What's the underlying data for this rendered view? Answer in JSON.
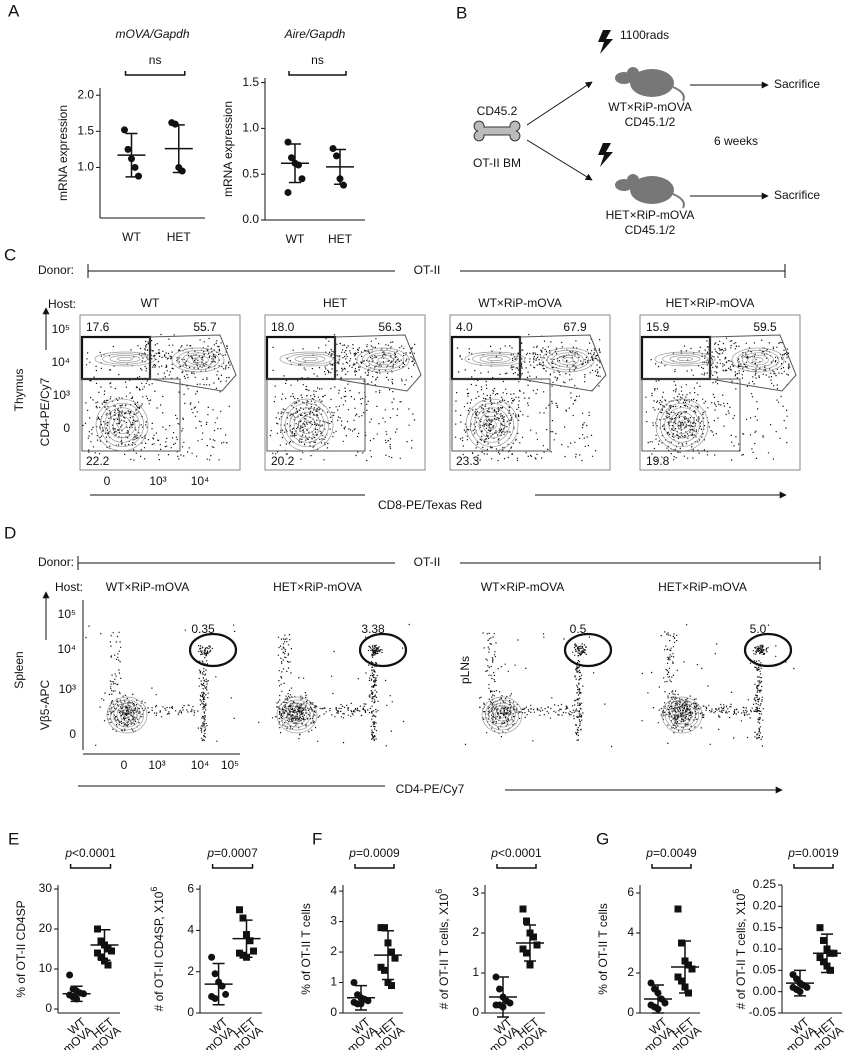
{
  "panel_labels": [
    "A",
    "B",
    "C",
    "D",
    "E",
    "F",
    "G"
  ],
  "chart_data": [
    {
      "type": "dotplot",
      "title": "mOVA/Gapdh",
      "ylabel": "mRNA expression",
      "annotation": "ns",
      "categories": [
        "WT",
        "HET"
      ],
      "ylim": [
        0.3,
        2.1
      ],
      "yticks": [
        {
          "value": 1,
          "label": "1.0"
        },
        {
          "value": 1.5,
          "label": "1.5"
        },
        {
          "value": 2,
          "label": "2.0"
        }
      ],
      "color": "#111111",
      "groups": [
        {
          "marker": "circle",
          "values": [
            1.52,
            1.25,
            1.12,
            1.0,
            0.88
          ],
          "mean": 1.17,
          "sd": 0.3
        },
        {
          "marker": "circle",
          "values": [
            1.62,
            1.6,
            1.0,
            0.95
          ],
          "mean": 1.26,
          "sd": 0.33
        }
      ]
    },
    {
      "type": "dotplot",
      "title": "Aire/Gapdh",
      "ylabel": "mRNA expression",
      "annotation": "ns",
      "categories": [
        "WT",
        "HET"
      ],
      "ylim": [
        0,
        1.55
      ],
      "yticks": [
        {
          "value": 0,
          "label": "0.0"
        },
        {
          "value": 0.5,
          "label": "0.5"
        },
        {
          "value": 1,
          "label": "1.0"
        },
        {
          "value": 1.5,
          "label": "1.5"
        }
      ],
      "color": "#111111",
      "groups": [
        {
          "marker": "circle",
          "values": [
            0.85,
            0.68,
            0.62,
            0.6,
            0.45,
            0.3
          ],
          "mean": 0.62,
          "sd": 0.21
        },
        {
          "marker": "circle",
          "values": [
            0.78,
            0.7,
            0.45,
            0.38
          ],
          "mean": 0.58,
          "sd": 0.19
        }
      ]
    },
    {
      "type": "dotplot",
      "ylabel": "% of OT-II CD4SP",
      "annotation_var": "p",
      "annotation": "<0.0001",
      "categories": [
        "WT",
        "HET"
      ],
      "category_sublabel": "RiP-mOVA",
      "ylim": [
        -1,
        31
      ],
      "yticks": [
        0,
        10,
        20,
        30
      ],
      "color": "#111111",
      "groups": [
        {
          "marker": "circle",
          "values": [
            8.5,
            5,
            4.5,
            4,
            3.8,
            3.5,
            3,
            2.5
          ],
          "mean": 3.8,
          "sd": 1.9
        },
        {
          "marker": "square",
          "values": [
            20,
            17,
            16,
            15,
            14.5,
            14,
            13,
            12,
            11
          ],
          "mean": 16,
          "sd": 3.8
        }
      ]
    },
    {
      "type": "dotplot",
      "ylabel": "# of OT-II CD4SP, X10",
      "ylabel_sup": "6",
      "annotation_var": "p",
      "annotation": "=0.0007",
      "categories": [
        "WT",
        "HET"
      ],
      "category_sublabel": "RiP-mOVA",
      "ylim": [
        0,
        6.2
      ],
      "yticks": [
        0,
        2,
        4,
        6
      ],
      "color": "#111111",
      "groups": [
        {
          "marker": "circle",
          "values": [
            2.7,
            1.9,
            1.5,
            1.3,
            0.9,
            0.8,
            0.7
          ],
          "mean": 1.4,
          "sd": 1.0
        },
        {
          "marker": "square",
          "values": [
            5.0,
            4.6,
            3.8,
            3.5,
            3.0,
            2.9,
            2.8,
            2.7
          ],
          "mean": 3.6,
          "sd": 0.9
        }
      ]
    },
    {
      "type": "dotplot",
      "ylabel": "% of OT-II T cells",
      "annotation_var": "p",
      "annotation": "=0.0009",
      "categories": [
        "WT",
        "HET"
      ],
      "category_sublabel": "RiP-mOVA",
      "ylim": [
        0,
        4.2
      ],
      "yticks": [
        0,
        1,
        2,
        3,
        4
      ],
      "color": "#111111",
      "groups": [
        {
          "marker": "circle",
          "values": [
            1.0,
            0.6,
            0.5,
            0.45,
            0.4,
            0.35,
            0.3,
            0.3
          ],
          "mean": 0.5,
          "sd": 0.4
        },
        {
          "marker": "square",
          "values": [
            2.8,
            2.8,
            2.3,
            2.0,
            1.8,
            1.5,
            1.4,
            1.0,
            0.9
          ],
          "mean": 1.9,
          "sd": 0.8
        }
      ]
    },
    {
      "type": "dotplot",
      "ylabel": "# of OT-II T cells, X10",
      "ylabel_sup": "6",
      "annotation_var": "p",
      "annotation": "<0.0001",
      "categories": [
        "WT",
        "HET"
      ],
      "category_sublabel": "RiP-mOVA",
      "ylim": [
        0,
        3.2
      ],
      "yticks": [
        0,
        1,
        2,
        3
      ],
      "color": "#111111",
      "groups": [
        {
          "marker": "circle",
          "values": [
            0.9,
            0.6,
            0.4,
            0.3,
            0.25,
            0.2,
            0.2,
            0.15
          ],
          "mean": 0.4,
          "sd": 0.5
        },
        {
          "marker": "square",
          "values": [
            2.6,
            2.3,
            2.0,
            1.9,
            1.7,
            1.6,
            1.5,
            1.2
          ],
          "mean": 1.75,
          "sd": 0.45
        }
      ]
    },
    {
      "type": "dotplot",
      "ylabel": "% of OT-II T cells",
      "annotation_var": "p",
      "annotation": "=0.0049",
      "categories": [
        "WT",
        "HET"
      ],
      "category_sublabel": "RiP-mOVA",
      "ylim": [
        0,
        6.4
      ],
      "yticks": [
        0,
        2,
        4,
        6
      ],
      "color": "#111111",
      "groups": [
        {
          "marker": "circle",
          "values": [
            1.5,
            1.2,
            1.0,
            0.7,
            0.5,
            0.4,
            0.3,
            0.2
          ],
          "mean": 0.7,
          "sd": 0.7
        },
        {
          "marker": "square",
          "values": [
            5.2,
            3.5,
            2.6,
            2.4,
            2.2,
            1.8,
            1.6,
            1.3,
            1.0
          ],
          "mean": 2.3,
          "sd": 1.3
        }
      ]
    },
    {
      "type": "dotplot",
      "ylabel": "# of OT-II T cells, X10",
      "ylabel_sup": "6",
      "annotation_var": "p",
      "annotation": "=0.0019",
      "categories": [
        "WT",
        "HET"
      ],
      "category_sublabel": "RiP-mOVA",
      "ylim": [
        -0.05,
        0.25
      ],
      "yticks": [
        -0.05,
        {
          "value": 0,
          "label": "0.00"
        },
        0.05,
        {
          "value": 0.1,
          "label": "0.10"
        },
        0.15,
        {
          "value": 0.2,
          "label": "0.20"
        },
        0.25
      ],
      "color": "#111111",
      "groups": [
        {
          "marker": "circle",
          "values": [
            0.04,
            0.03,
            0.02,
            0.015,
            0.01,
            0.01,
            0.005,
            0.0
          ],
          "mean": 0.02,
          "sd": 0.03
        },
        {
          "marker": "square",
          "values": [
            0.15,
            0.12,
            0.1,
            0.09,
            0.09,
            0.08,
            0.07,
            0.06,
            0.05
          ],
          "mean": 0.09,
          "sd": 0.045
        }
      ]
    }
  ],
  "diagram_b": {
    "irradiation": "1100rads",
    "donor_marker": "CD45.2",
    "donor": "OT-II BM",
    "duration": "6 weeks",
    "hosts": [
      {
        "name": "WT×RiP-mOVA",
        "marker": "CD45.1/2",
        "outcome": "Sacrifice"
      },
      {
        "name": "HET×RiP-mOVA",
        "marker": "CD45.1/2",
        "outcome": "Sacrifice"
      }
    ]
  },
  "flow_c": {
    "donor_label": "Donor:",
    "donor": "OT-II",
    "host_label": "Host:",
    "organ": "Thymus",
    "y_axis": "CD4-PE/Cy7",
    "x_axis": "CD8-PE/Texas Red",
    "y_ticks": [
      "10⁵",
      "10⁴",
      "10³",
      "0"
    ],
    "x_ticks": [
      "0",
      "10³",
      "10⁴"
    ],
    "plots": [
      {
        "host": "WT",
        "gates": [
          "17.6",
          "55.7",
          "22.2"
        ]
      },
      {
        "host": "HET",
        "gates": [
          "18.0",
          "56.3",
          "20.2"
        ]
      },
      {
        "host": "WT×RiP-mOVA",
        "gates": [
          "4.0",
          "67.9",
          "23.3"
        ]
      },
      {
        "host": "HET×RiP-mOVA",
        "gates": [
          "15.9",
          "59.5",
          "19.8"
        ]
      }
    ]
  },
  "flow_d": {
    "donor_label": "Donor:",
    "donor": "OT-II",
    "host_label": "Host:",
    "organs": [
      "Spleen",
      "pLNs"
    ],
    "y_axis": "Vβ5-APC",
    "x_axis": "CD4-PE/Cy7",
    "y_ticks": [
      "10⁵",
      "10⁴",
      "10³",
      "0"
    ],
    "x_ticks": [
      "0",
      "10³",
      "10⁴",
      "10⁵"
    ],
    "plots": [
      {
        "host": "WT×RiP-mOVA",
        "gate": "0.35"
      },
      {
        "host": "HET×RiP-mOVA",
        "gate": "3.38"
      },
      {
        "host": "WT×RiP-mOVA",
        "gate": "0.5"
      },
      {
        "host": "HET×RiP-mOVA",
        "gate": "5.0"
      }
    ]
  }
}
